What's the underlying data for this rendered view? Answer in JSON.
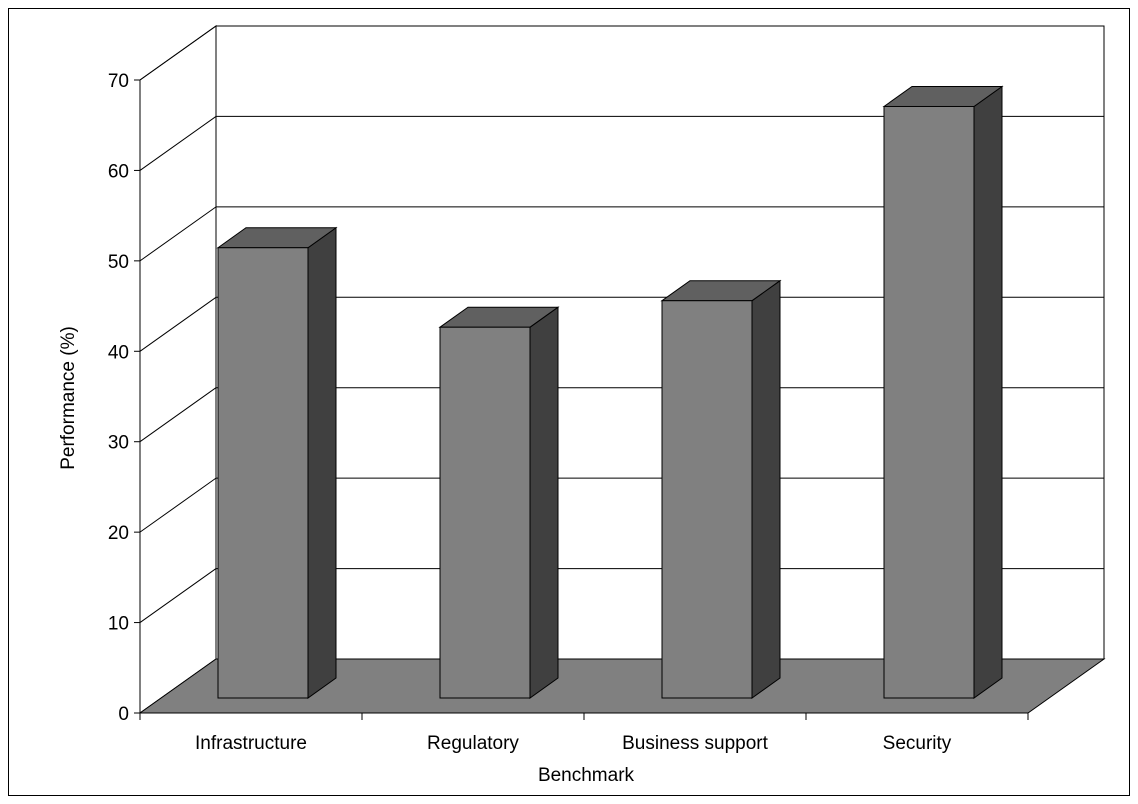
{
  "chart_data": {
    "type": "bar",
    "title": "",
    "xlabel": "Benchmark",
    "ylabel": "Performance (%)",
    "ylim": [
      0,
      70
    ],
    "yticks": [
      "0",
      "10",
      "20",
      "30",
      "40",
      "50",
      "60",
      "70"
    ],
    "categories": [
      "Infrastructure",
      "Regulatory",
      "Business support",
      "Security"
    ],
    "values": [
      51,
      42,
      45,
      67
    ],
    "grid": true,
    "legend": "none",
    "colors": {
      "bar_front": "#808080",
      "bar_side": "#404040",
      "bar_top": "#606060",
      "floor": "#808080",
      "stroke": "#000000",
      "gridline": "#000000"
    }
  }
}
